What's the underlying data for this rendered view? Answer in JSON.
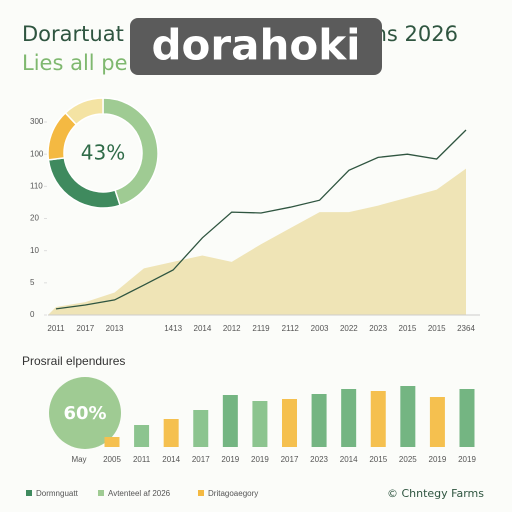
{
  "header": {
    "title_left": "Dorartuat",
    "title_right": "ns 2026",
    "subtitle": "Lies all pe",
    "watermark": "dorahoki"
  },
  "chart_data": [
    {
      "type": "pie",
      "center_label": "43%",
      "values": [
        45,
        28,
        15,
        12
      ],
      "colors": [
        "#9fcb93",
        "#3f8a5e",
        "#f4b942",
        "#f4e3a3"
      ]
    },
    {
      "type": "line",
      "categories": [
        "2011",
        "2017",
        "2013",
        null,
        "1413",
        "2014",
        "2012",
        "2119",
        "2112",
        "2003",
        "2022",
        "2023",
        "2015",
        "2015",
        "2364"
      ],
      "ylim": [
        0,
        6
      ],
      "yticks": [
        {
          "value": 0,
          "label": "0"
        },
        {
          "value": 1,
          "label": "5"
        },
        {
          "value": 2,
          "label": "10"
        },
        {
          "value": 3,
          "label": "20"
        },
        {
          "value": 4,
          "label": "110"
        },
        {
          "value": 5,
          "label": "100"
        },
        {
          "value": 6,
          "label": "300"
        }
      ],
      "series": [
        {
          "color": "#efe4b6",
          "area": true,
          "values": [
            0.25,
            0.4,
            0.7,
            1.45,
            1.65,
            1.85,
            1.65,
            2.2,
            2.7,
            3.2,
            3.2,
            3.4,
            3.65,
            3.9,
            4.55
          ]
        },
        {
          "color": "#2f5540",
          "area": false,
          "values": [
            0.19,
            0.31,
            0.47,
            0.93,
            1.4,
            2.4,
            3.2,
            3.17,
            3.35,
            3.57,
            4.5,
            4.9,
            5.0,
            4.85,
            5.75
          ]
        }
      ]
    },
    {
      "type": "bar",
      "title": "Prosrail elpendures",
      "center_label": "60%",
      "first_label": "May",
      "categories": [
        "2005",
        "2011",
        "2014",
        "2017",
        "2019",
        "2019",
        "2017",
        "2023",
        "2014",
        "2015",
        "2025",
        "2019",
        "2019"
      ],
      "values": [
        10,
        22,
        28,
        37,
        52,
        46,
        48,
        53,
        58,
        56,
        61,
        50,
        58
      ],
      "colors": [
        "#f5c04f",
        "#8cc48f",
        "#f5c04f",
        "#8cc48f",
        "#74b582",
        "#8cc48f",
        "#f5c04f",
        "#74b582",
        "#74b582",
        "#f5c04f",
        "#74b582",
        "#f5c04f",
        "#74b582"
      ],
      "ylim": [
        0,
        62
      ],
      "legend": [
        {
          "name": "Dormnguatt",
          "color": "#3f8a5e"
        },
        {
          "name": "Avtenteel af 2026",
          "color": "#9fcb93"
        },
        {
          "name": "Dritagoaegory",
          "color": "#f4b942"
        }
      ],
      "footer": "© Chntegy Farms"
    }
  ]
}
